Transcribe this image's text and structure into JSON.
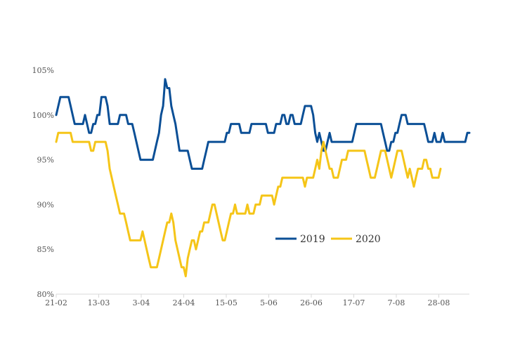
{
  "chart_data": {
    "type": "line",
    "title": "",
    "xlabel": "",
    "ylabel": "",
    "x_tick_labels": [
      "21-02",
      "13-03",
      "3-04",
      "24-04",
      "15-05",
      "5-06",
      "26-06",
      "17-07",
      "7-08",
      "28-08"
    ],
    "y_tick_labels": [
      "80%",
      "85%",
      "90%",
      "95%",
      "100%",
      "105%"
    ],
    "y_ticks": [
      80,
      85,
      90,
      95,
      100,
      105
    ],
    "ylim": [
      80,
      105
    ],
    "xlim": [
      0,
      201
    ],
    "grid": false,
    "legend_position": "center-right",
    "series": [
      {
        "name": "2019",
        "color": "#0b4f96",
        "points": [
          [
            0,
            100
          ],
          [
            2,
            102
          ],
          [
            6,
            102
          ],
          [
            7,
            101
          ],
          [
            8,
            100
          ],
          [
            9,
            99
          ],
          [
            13,
            99
          ],
          [
            14,
            100
          ],
          [
            15,
            99
          ],
          [
            16,
            98
          ],
          [
            17,
            98
          ],
          [
            18,
            99
          ],
          [
            19,
            99
          ],
          [
            20,
            100
          ],
          [
            21,
            100
          ],
          [
            22,
            102
          ],
          [
            24,
            102
          ],
          [
            25,
            101
          ],
          [
            26,
            99
          ],
          [
            30,
            99
          ],
          [
            31,
            100
          ],
          [
            34,
            100
          ],
          [
            35,
            99
          ],
          [
            37,
            99
          ],
          [
            38,
            98
          ],
          [
            39,
            97
          ],
          [
            40,
            96
          ],
          [
            41,
            95
          ],
          [
            47,
            95
          ],
          [
            48,
            96
          ],
          [
            49,
            97
          ],
          [
            50,
            98
          ],
          [
            51,
            100
          ],
          [
            52,
            101
          ],
          [
            53,
            104
          ],
          [
            54,
            103
          ],
          [
            55,
            103
          ],
          [
            56,
            101
          ],
          [
            57,
            100
          ],
          [
            58,
            99
          ],
          [
            60,
            96
          ],
          [
            64,
            96
          ],
          [
            65,
            95
          ],
          [
            66,
            94
          ],
          [
            71,
            94
          ],
          [
            72,
            95
          ],
          [
            73,
            96
          ],
          [
            74,
            97
          ],
          [
            82,
            97
          ],
          [
            83,
            98
          ],
          [
            84,
            98
          ],
          [
            85,
            99
          ],
          [
            89,
            99
          ],
          [
            90,
            98
          ],
          [
            94,
            98
          ],
          [
            95,
            99
          ],
          [
            102,
            99
          ],
          [
            103,
            98
          ],
          [
            106,
            98
          ],
          [
            107,
            99
          ],
          [
            109,
            99
          ],
          [
            110,
            100
          ],
          [
            111,
            100
          ],
          [
            112,
            99
          ],
          [
            113,
            99
          ],
          [
            114,
            100
          ],
          [
            115,
            100
          ],
          [
            116,
            99
          ],
          [
            119,
            99
          ],
          [
            120,
            100
          ],
          [
            121,
            101
          ],
          [
            124,
            101
          ],
          [
            125,
            100
          ],
          [
            126,
            98
          ],
          [
            127,
            97
          ],
          [
            128,
            98
          ],
          [
            129,
            97
          ],
          [
            130,
            96
          ],
          [
            131,
            96
          ],
          [
            132,
            97
          ],
          [
            133,
            98
          ],
          [
            134,
            97
          ],
          [
            137,
            97
          ],
          [
            139,
            97
          ],
          [
            144,
            97
          ],
          [
            145,
            98
          ],
          [
            146,
            99
          ],
          [
            158,
            99
          ],
          [
            159,
            98
          ],
          [
            160,
            97
          ],
          [
            161,
            96
          ],
          [
            162,
            96
          ],
          [
            163,
            97
          ],
          [
            164,
            97
          ],
          [
            165,
            98
          ],
          [
            166,
            98
          ],
          [
            167,
            99
          ],
          [
            168,
            100
          ],
          [
            170,
            100
          ],
          [
            171,
            99
          ],
          [
            178,
            99
          ],
          [
            179,
            99
          ],
          [
            180,
            98
          ],
          [
            181,
            97
          ],
          [
            183,
            97
          ],
          [
            184,
            98
          ],
          [
            185,
            97
          ],
          [
            187,
            97
          ],
          [
            188,
            98
          ],
          [
            189,
            97
          ],
          [
            199,
            97
          ],
          [
            200,
            98
          ],
          [
            201,
            98
          ]
        ]
      },
      {
        "name": "2020",
        "color": "#f5c518",
        "points": [
          [
            0,
            97
          ],
          [
            1,
            98
          ],
          [
            7,
            98
          ],
          [
            8,
            97
          ],
          [
            16,
            97
          ],
          [
            17,
            96
          ],
          [
            18,
            96
          ],
          [
            19,
            97
          ],
          [
            24,
            97
          ],
          [
            25,
            96
          ],
          [
            26,
            94
          ],
          [
            27,
            93
          ],
          [
            28,
            92
          ],
          [
            29,
            91
          ],
          [
            30,
            90
          ],
          [
            31,
            89
          ],
          [
            33,
            89
          ],
          [
            34,
            88
          ],
          [
            35,
            87
          ],
          [
            36,
            86
          ],
          [
            41,
            86
          ],
          [
            42,
            87
          ],
          [
            43,
            86
          ],
          [
            44,
            85
          ],
          [
            45,
            84
          ],
          [
            46,
            83
          ],
          [
            49,
            83
          ],
          [
            50,
            84
          ],
          [
            51,
            85
          ],
          [
            52,
            86
          ],
          [
            53,
            87
          ],
          [
            54,
            88
          ],
          [
            55,
            88
          ],
          [
            56,
            89
          ],
          [
            57,
            88
          ],
          [
            58,
            86
          ],
          [
            59,
            85
          ],
          [
            60,
            84
          ],
          [
            61,
            83
          ],
          [
            62,
            83
          ],
          [
            63,
            82
          ],
          [
            64,
            84
          ],
          [
            65,
            85
          ],
          [
            66,
            86
          ],
          [
            67,
            86
          ],
          [
            68,
            85
          ],
          [
            69,
            86
          ],
          [
            70,
            87
          ],
          [
            71,
            87
          ],
          [
            72,
            88
          ],
          [
            74,
            88
          ],
          [
            75,
            89
          ],
          [
            76,
            90
          ],
          [
            77,
            90
          ],
          [
            78,
            89
          ],
          [
            79,
            88
          ],
          [
            80,
            87
          ],
          [
            81,
            86
          ],
          [
            82,
            86
          ],
          [
            83,
            87
          ],
          [
            84,
            88
          ],
          [
            85,
            89
          ],
          [
            86,
            89
          ],
          [
            87,
            90
          ],
          [
            88,
            89
          ],
          [
            92,
            89
          ],
          [
            93,
            90
          ],
          [
            94,
            89
          ],
          [
            96,
            89
          ],
          [
            97,
            90
          ],
          [
            99,
            90
          ],
          [
            100,
            91
          ],
          [
            105,
            91
          ],
          [
            106,
            90
          ],
          [
            107,
            91
          ],
          [
            108,
            92
          ],
          [
            109,
            92
          ],
          [
            110,
            93
          ],
          [
            120,
            93
          ],
          [
            121,
            92
          ],
          [
            122,
            93
          ],
          [
            125,
            93
          ],
          [
            126,
            94
          ],
          [
            127,
            95
          ],
          [
            128,
            94
          ],
          [
            129,
            96
          ],
          [
            130,
            97
          ],
          [
            131,
            96
          ],
          [
            132,
            95
          ],
          [
            133,
            94
          ],
          [
            134,
            94
          ],
          [
            135,
            93
          ],
          [
            137,
            93
          ],
          [
            138,
            94
          ],
          [
            139,
            95
          ],
          [
            141,
            95
          ],
          [
            142,
            96
          ],
          [
            150,
            96
          ],
          [
            151,
            95
          ],
          [
            152,
            94
          ],
          [
            153,
            93
          ],
          [
            155,
            93
          ],
          [
            156,
            94
          ],
          [
            157,
            95
          ],
          [
            158,
            96
          ],
          [
            160,
            96
          ],
          [
            161,
            95
          ],
          [
            162,
            94
          ],
          [
            163,
            93
          ],
          [
            164,
            94
          ],
          [
            165,
            95
          ],
          [
            166,
            96
          ],
          [
            168,
            96
          ],
          [
            169,
            95
          ],
          [
            170,
            94
          ],
          [
            171,
            93
          ],
          [
            172,
            94
          ],
          [
            173,
            93
          ],
          [
            174,
            92
          ],
          [
            175,
            93
          ],
          [
            176,
            94
          ],
          [
            177,
            94
          ],
          [
            178,
            94
          ],
          [
            179,
            95
          ],
          [
            180,
            95
          ],
          [
            181,
            94
          ],
          [
            182,
            94
          ],
          [
            183,
            93
          ],
          [
            186,
            93
          ],
          [
            187,
            94
          ]
        ]
      }
    ]
  }
}
